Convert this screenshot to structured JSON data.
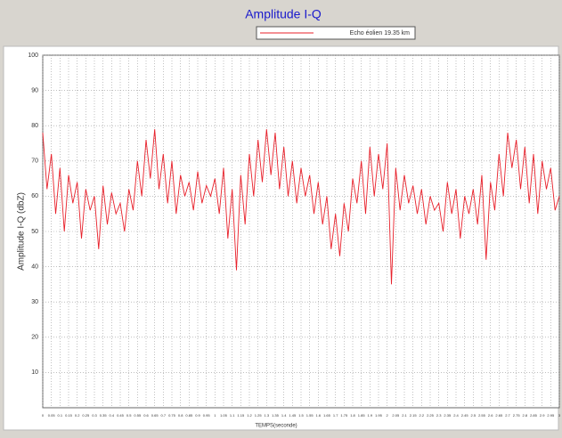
{
  "chart_data": {
    "type": "line",
    "title": "Amplitude I-Q",
    "xlabel": "TEMPS(seconde)",
    "ylabel": "Amplitude I-Q (dbZ)",
    "x": [
      0,
      0.025,
      0.05,
      0.075,
      0.1,
      0.125,
      0.15,
      0.175,
      0.2,
      0.225,
      0.25,
      0.275,
      0.3,
      0.325,
      0.35,
      0.375,
      0.4,
      0.425,
      0.45,
      0.475,
      0.5,
      0.525,
      0.55,
      0.575,
      0.6,
      0.625,
      0.65,
      0.675,
      0.7,
      0.725,
      0.75,
      0.775,
      0.8,
      0.825,
      0.85,
      0.875,
      0.9,
      0.925,
      0.95,
      0.975,
      1,
      1.025,
      1.05,
      1.075,
      1.1,
      1.125,
      1.15,
      1.175,
      1.2,
      1.225,
      1.25,
      1.275,
      1.3,
      1.325,
      1.35,
      1.375,
      1.4,
      1.425,
      1.45,
      1.475,
      1.5,
      1.525,
      1.55,
      1.575,
      1.6,
      1.625,
      1.65,
      1.675,
      1.7,
      1.725,
      1.75,
      1.775,
      1.8,
      1.825,
      1.85,
      1.875,
      1.9,
      1.925,
      1.95,
      1.975,
      2,
      2.025,
      2.05,
      2.075,
      2.1,
      2.125,
      2.15,
      2.175,
      2.2,
      2.225,
      2.25,
      2.275,
      2.3,
      2.325,
      2.35,
      2.375,
      2.4,
      2.425,
      2.45,
      2.475,
      2.5,
      2.525,
      2.55,
      2.575,
      2.6,
      2.625,
      2.65,
      2.675,
      2.7,
      2.725,
      2.75,
      2.775,
      2.8,
      2.825,
      2.85,
      2.875,
      2.9,
      2.925,
      2.95,
      2.975,
      3
    ],
    "series": [
      {
        "name": "Echo éolien 19.35 km",
        "color": "#e8202a",
        "values": [
          78,
          62,
          72,
          55,
          68,
          50,
          66,
          58,
          64,
          48,
          62,
          56,
          60,
          45,
          63,
          52,
          61,
          55,
          58,
          50,
          62,
          56,
          70,
          60,
          76,
          65,
          79,
          62,
          72,
          58,
          70,
          55,
          66,
          60,
          64,
          56,
          67,
          58,
          63,
          60,
          65,
          55,
          68,
          48,
          62,
          39,
          66,
          52,
          72,
          60,
          76,
          64,
          79,
          66,
          78,
          62,
          74,
          60,
          70,
          58,
          68,
          60,
          66,
          55,
          64,
          52,
          60,
          45,
          55,
          43,
          58,
          50,
          65,
          58,
          70,
          55,
          74,
          60,
          72,
          62,
          75,
          35,
          68,
          56,
          66,
          58,
          63,
          55,
          62,
          52,
          60,
          56,
          58,
          50,
          64,
          55,
          62,
          48,
          60,
          55,
          62,
          52,
          66,
          42,
          64,
          56,
          72,
          60,
          78,
          68,
          76,
          62,
          74,
          58,
          72,
          55,
          70,
          62,
          68,
          56,
          60
        ]
      }
    ],
    "xlim": [
      0,
      3
    ],
    "xticks": [
      0,
      0.05,
      0.1,
      0.15,
      0.2,
      0.25,
      0.3,
      0.35,
      0.4,
      0.45,
      0.5,
      0.55,
      0.6,
      0.65,
      0.7,
      0.75,
      0.8,
      0.85,
      0.9,
      0.95,
      1,
      1.05,
      1.1,
      1.15,
      1.2,
      1.25,
      1.3,
      1.35,
      1.4,
      1.45,
      1.5,
      1.55,
      1.6,
      1.65,
      1.7,
      1.75,
      1.8,
      1.85,
      1.9,
      1.95,
      2,
      2.05,
      2.1,
      2.15,
      2.2,
      2.25,
      2.3,
      2.35,
      2.4,
      2.45,
      2.5,
      2.55,
      2.6,
      2.65,
      2.7,
      2.75,
      2.8,
      2.85,
      2.9,
      2.95,
      3
    ],
    "ylim": [
      0,
      100
    ],
    "yticks": [
      10,
      20,
      30,
      40,
      50,
      60,
      70,
      80,
      90,
      100
    ],
    "grid": true
  }
}
